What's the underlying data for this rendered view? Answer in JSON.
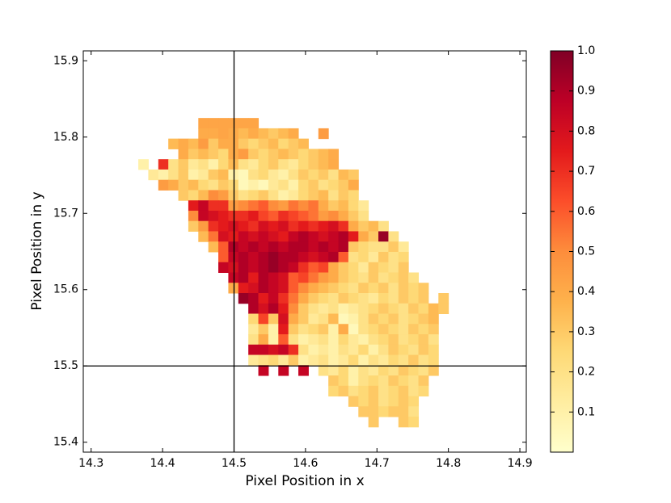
{
  "chart_data": {
    "type": "heatmap",
    "xlabel": "Pixel Position in x",
    "ylabel": "Pixel Position in y",
    "xlim": [
      14.289,
      14.909
    ],
    "ylim": [
      15.387,
      15.913
    ],
    "xticks": [
      14.3,
      14.4,
      14.5,
      14.6,
      14.7,
      14.8,
      14.9
    ],
    "yticks": [
      15.4,
      15.5,
      15.6,
      15.7,
      15.8,
      15.9
    ],
    "vlines": [
      14.5
    ],
    "hlines": [
      15.5
    ],
    "clim": [
      0,
      1
    ],
    "cticks": [
      0.1,
      0.2,
      0.3,
      0.4,
      0.5,
      0.6,
      0.7,
      0.8,
      0.9,
      {
        "value": 1,
        "label": "1.0"
      }
    ],
    "colorscale": [
      "#ffffcc",
      "#ffeda0",
      "#fed976",
      "#feb24c",
      "#fd8d3c",
      "#fc4e2a",
      "#e31a1c",
      "#bd0026",
      "#800026"
    ],
    "xbins": [
      14.366,
      14.38,
      14.394,
      14.408,
      14.422,
      14.436,
      14.45,
      14.464,
      14.478,
      14.492,
      14.506,
      14.52,
      14.534,
      14.548,
      14.562,
      14.576,
      14.59,
      14.604,
      14.618,
      14.632,
      14.646,
      14.66,
      14.674,
      14.688,
      14.702,
      14.716,
      14.73,
      14.744,
      14.758,
      14.772,
      14.786,
      14.8
    ],
    "ybins": [
      15.825,
      15.8115,
      15.798,
      15.7845,
      15.771,
      15.7575,
      15.744,
      15.7305,
      15.717,
      15.7035,
      15.69,
      15.6765,
      15.663,
      15.6495,
      15.636,
      15.6225,
      15.609,
      15.5955,
      15.582,
      15.5685,
      15.555,
      15.5415,
      15.528,
      15.5145,
      15.501,
      15.4875,
      15.474,
      15.4605,
      15.447,
      15.4335,
      15.42
    ],
    "z": [
      [
        null,
        null,
        null,
        null,
        null,
        null,
        0.42,
        0.42,
        0.42,
        0.42,
        0.42,
        0.42,
        null,
        null,
        null,
        null,
        null,
        null,
        null,
        null,
        null,
        null,
        null,
        null,
        null,
        null,
        null,
        null,
        null,
        null,
        null
      ],
      [
        null,
        null,
        null,
        null,
        null,
        null,
        0.4,
        0.4,
        0.42,
        0.4,
        0.35,
        0.4,
        0.35,
        0.3,
        0.35,
        0.4,
        null,
        null,
        0.45,
        null,
        null,
        null,
        null,
        null,
        null,
        null,
        null,
        null,
        null,
        null,
        null
      ],
      [
        null,
        null,
        null,
        0.35,
        0.4,
        0.35,
        0.45,
        0.3,
        0.4,
        0.4,
        0.3,
        0.25,
        0.3,
        0.35,
        0.25,
        0.3,
        0.35,
        null,
        null,
        null,
        null,
        null,
        null,
        null,
        null,
        null,
        null,
        null,
        null,
        null,
        null
      ],
      [
        null,
        null,
        null,
        null,
        0.4,
        0.3,
        0.35,
        0.3,
        0.25,
        0.4,
        0.45,
        0.3,
        0.25,
        0.3,
        0.35,
        0.3,
        0.25,
        0.3,
        0.35,
        0.4,
        null,
        null,
        null,
        null,
        null,
        null,
        null,
        null,
        null,
        null,
        null
      ],
      [
        0.1,
        null,
        0.7,
        0.2,
        0.3,
        0.15,
        0.2,
        0.1,
        0.25,
        0.35,
        0.2,
        0.15,
        0.25,
        0.3,
        0.2,
        0.15,
        0.25,
        0.3,
        0.35,
        0.4,
        null,
        null,
        null,
        null,
        null,
        null,
        null,
        null,
        null,
        null,
        null
      ],
      [
        null,
        0.15,
        0.1,
        0.2,
        0.3,
        0.1,
        0.15,
        0.3,
        0.35,
        0.1,
        0.05,
        0.2,
        0.25,
        0.15,
        0.1,
        0.2,
        0.3,
        0.25,
        0.3,
        0.2,
        0.35,
        0.3,
        null,
        null,
        null,
        null,
        null,
        null,
        null,
        null,
        null
      ],
      [
        null,
        null,
        0.45,
        0.4,
        0.3,
        0.35,
        0.25,
        0.2,
        0.3,
        0.25,
        0.05,
        0.1,
        0.05,
        0.15,
        0.2,
        0.1,
        0.25,
        0.3,
        0.2,
        0.25,
        0.3,
        0.4,
        null,
        null,
        null,
        null,
        null,
        null,
        null,
        null,
        null
      ],
      [
        null,
        null,
        null,
        null,
        0.3,
        0.25,
        0.35,
        0.5,
        0.45,
        0.3,
        0.2,
        0.25,
        0.3,
        0.2,
        0.1,
        0.15,
        0.25,
        0.3,
        0.35,
        0.2,
        0.3,
        0.25,
        null,
        null,
        null,
        null,
        null,
        null,
        null,
        null,
        null
      ],
      [
        null,
        null,
        null,
        null,
        null,
        0.75,
        0.85,
        0.7,
        0.7,
        0.45,
        0.5,
        0.55,
        0.6,
        0.5,
        0.45,
        0.55,
        0.5,
        0.55,
        0.4,
        0.3,
        0.35,
        0.25,
        0.15,
        null,
        null,
        null,
        null,
        null,
        null,
        null,
        null
      ],
      [
        null,
        null,
        null,
        null,
        null,
        0.5,
        0.85,
        0.8,
        0.75,
        0.7,
        0.7,
        0.75,
        0.65,
        0.6,
        0.7,
        0.65,
        0.6,
        0.55,
        0.45,
        0.5,
        0.4,
        0.3,
        0.2,
        null,
        null,
        null,
        null,
        null,
        null,
        null,
        null
      ],
      [
        null,
        null,
        null,
        null,
        null,
        0.3,
        0.45,
        0.7,
        0.75,
        0.8,
        0.75,
        0.7,
        0.8,
        0.75,
        0.8,
        0.7,
        0.75,
        0.7,
        0.75,
        0.8,
        0.7,
        0.4,
        0.3,
        0.35,
        0.2,
        null,
        null,
        null,
        null,
        null,
        null
      ],
      [
        null,
        null,
        null,
        null,
        null,
        null,
        0.35,
        0.55,
        0.8,
        0.75,
        0.85,
        0.8,
        0.85,
        0.8,
        0.75,
        0.85,
        0.9,
        0.85,
        0.8,
        0.85,
        0.9,
        0.75,
        0.4,
        0.3,
        0.95,
        0.2,
        null,
        null,
        null,
        null,
        null
      ],
      [
        null,
        null,
        null,
        null,
        null,
        null,
        null,
        0.35,
        0.6,
        0.9,
        0.85,
        0.9,
        0.85,
        0.9,
        0.85,
        0.9,
        0.9,
        0.85,
        0.9,
        0.85,
        0.9,
        0.3,
        0.25,
        0.2,
        0.2,
        0.3,
        0.15,
        null,
        null,
        null,
        null
      ],
      [
        null,
        null,
        null,
        null,
        null,
        null,
        null,
        null,
        0.6,
        0.85,
        0.9,
        0.85,
        0.9,
        0.95,
        0.9,
        0.9,
        0.85,
        0.8,
        0.85,
        0.9,
        0.6,
        0.2,
        0.25,
        0.15,
        0.3,
        0.2,
        0.25,
        null,
        null,
        null,
        null
      ],
      [
        null,
        null,
        null,
        null,
        null,
        null,
        null,
        null,
        0.85,
        0.8,
        0.9,
        0.85,
        0.9,
        0.95,
        0.9,
        0.85,
        0.7,
        0.6,
        0.65,
        0.4,
        0.3,
        0.25,
        0.15,
        0.3,
        0.25,
        0.2,
        0.3,
        null,
        null,
        null,
        null
      ],
      [
        null,
        null,
        null,
        null,
        null,
        null,
        null,
        null,
        null,
        0.85,
        0.9,
        0.75,
        0.9,
        0.85,
        0.8,
        0.6,
        0.65,
        0.55,
        0.45,
        0.4,
        0.3,
        0.25,
        0.2,
        0.3,
        0.2,
        0.25,
        0.3,
        0.2,
        null,
        null,
        null
      ],
      [
        null,
        null,
        null,
        null,
        null,
        null,
        null,
        null,
        null,
        0.4,
        0.75,
        0.8,
        0.9,
        0.85,
        0.8,
        0.6,
        0.5,
        0.4,
        0.35,
        0.3,
        0.25,
        0.2,
        0.3,
        0.25,
        0.3,
        0.2,
        0.3,
        0.25,
        0.3,
        null,
        null
      ],
      [
        null,
        null,
        null,
        null,
        null,
        null,
        null,
        null,
        null,
        null,
        0.95,
        0.9,
        0.75,
        0.85,
        0.7,
        0.55,
        0.4,
        0.3,
        0.25,
        0.2,
        0.3,
        0.25,
        0.2,
        0.15,
        0.25,
        0.2,
        0.3,
        0.25,
        0.3,
        null,
        0.3
      ],
      [
        null,
        null,
        null,
        null,
        null,
        null,
        null,
        null,
        null,
        null,
        null,
        0.9,
        0.8,
        0.9,
        0.75,
        0.5,
        0.3,
        0.2,
        0.15,
        0.2,
        0.1,
        0.15,
        0.2,
        0.25,
        0.3,
        0.25,
        0.2,
        0.3,
        0.25,
        0.35,
        0.3
      ],
      [
        null,
        null,
        null,
        null,
        null,
        null,
        null,
        null,
        null,
        null,
        null,
        0.25,
        0.65,
        0.3,
        0.8,
        0.4,
        0.3,
        0.15,
        0.2,
        0.35,
        0.05,
        0.1,
        0.2,
        0.3,
        0.25,
        0.3,
        0.2,
        0.25,
        0.3,
        0.35,
        null
      ],
      [
        null,
        null,
        null,
        null,
        null,
        null,
        null,
        null,
        null,
        null,
        null,
        0.15,
        0.3,
        0.1,
        0.75,
        0.3,
        0.2,
        0.25,
        0.3,
        0.1,
        0.4,
        0.05,
        0.2,
        0.25,
        0.3,
        0.25,
        0.2,
        0.3,
        0.25,
        0.3,
        null
      ],
      [
        null,
        null,
        null,
        null,
        null,
        null,
        null,
        null,
        null,
        null,
        null,
        0.2,
        0.4,
        0.1,
        0.6,
        0.2,
        0.1,
        0.15,
        0.2,
        0.1,
        0.25,
        0.15,
        0.1,
        0.2,
        0.25,
        0.3,
        0.2,
        0.25,
        0.3,
        0.2,
        null
      ],
      [
        null,
        null,
        null,
        null,
        null,
        null,
        null,
        null,
        null,
        null,
        null,
        0.85,
        0.85,
        0.8,
        0.85,
        0.7,
        0.2,
        0.1,
        0.15,
        0.1,
        0.2,
        0.15,
        0.25,
        0.1,
        0.2,
        0.3,
        0.25,
        0.2,
        0.3,
        0.25,
        null
      ],
      [
        null,
        null,
        null,
        null,
        null,
        null,
        null,
        null,
        null,
        null,
        null,
        0.15,
        0.2,
        0.25,
        0.15,
        0.3,
        0.1,
        0.15,
        0.2,
        0.1,
        0.15,
        0.25,
        0.1,
        0.2,
        0.15,
        0.25,
        0.2,
        0.3,
        0.2,
        0.25,
        null
      ],
      [
        null,
        null,
        null,
        null,
        null,
        null,
        null,
        null,
        null,
        null,
        null,
        null,
        0.85,
        null,
        0.85,
        null,
        0.85,
        null,
        0.2,
        0.15,
        0.25,
        0.1,
        0.2,
        0.15,
        0.25,
        0.2,
        0.3,
        0.25,
        0.2,
        0.3,
        null
      ],
      [
        null,
        null,
        null,
        null,
        null,
        null,
        null,
        null,
        null,
        null,
        null,
        null,
        null,
        null,
        null,
        null,
        null,
        null,
        null,
        0.3,
        0.25,
        0.1,
        0.2,
        0.25,
        0.2,
        0.3,
        0.25,
        0.2,
        0.3,
        null,
        null
      ],
      [
        null,
        null,
        null,
        null,
        null,
        null,
        null,
        null,
        null,
        null,
        null,
        null,
        null,
        null,
        null,
        null,
        null,
        null,
        null,
        0.25,
        0.3,
        0.2,
        0.25,
        0.3,
        0.2,
        0.25,
        0.3,
        0.2,
        0.25,
        null,
        null
      ],
      [
        null,
        null,
        null,
        null,
        null,
        null,
        null,
        null,
        null,
        null,
        null,
        null,
        null,
        null,
        null,
        null,
        null,
        null,
        null,
        null,
        null,
        0.3,
        0.25,
        0.3,
        0.2,
        0.25,
        0.3,
        0.25,
        null,
        null,
        null
      ],
      [
        null,
        null,
        null,
        null,
        null,
        null,
        null,
        null,
        null,
        null,
        null,
        null,
        null,
        null,
        null,
        null,
        null,
        null,
        null,
        null,
        null,
        null,
        0.3,
        0.3,
        0.25,
        0.3,
        0.3,
        0.2,
        null,
        null,
        null
      ],
      [
        null,
        null,
        null,
        null,
        null,
        null,
        null,
        null,
        null,
        null,
        null,
        null,
        null,
        null,
        null,
        null,
        null,
        null,
        null,
        null,
        null,
        null,
        null,
        0.3,
        null,
        null,
        0.3,
        0.25,
        null,
        null,
        null
      ]
    ]
  }
}
